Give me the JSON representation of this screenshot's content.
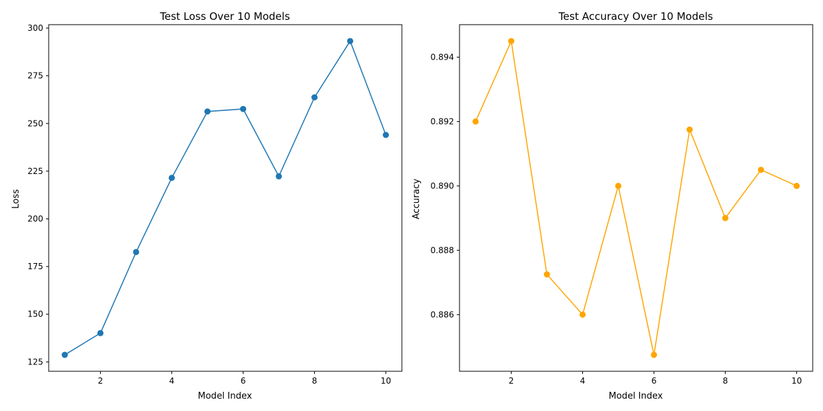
{
  "chart_data": [
    {
      "type": "line",
      "title": "Test Loss Over 10 Models",
      "xlabel": "Model Index",
      "ylabel": "Loss",
      "x": [
        1,
        2,
        3,
        4,
        5,
        6,
        7,
        8,
        9,
        10
      ],
      "series": [
        {
          "color": "#1f77b4",
          "marker": "circle",
          "values": [
            128.7,
            140.1,
            182.6,
            221.5,
            256.3,
            257.6,
            222.3,
            263.7,
            293.2,
            244.0
          ]
        }
      ],
      "xlim": [
        0.55,
        10.45
      ],
      "ylim": [
        120.1,
        301.8
      ],
      "xticks": [
        2,
        4,
        6,
        8,
        10
      ],
      "xtick_labels": [
        "2",
        "4",
        "6",
        "8",
        "10"
      ],
      "yticks": [
        125,
        150,
        175,
        200,
        225,
        250,
        275,
        300
      ],
      "ytick_labels": [
        "125",
        "150",
        "175",
        "200",
        "225",
        "250",
        "275",
        "300"
      ],
      "grid": false
    },
    {
      "type": "line",
      "title": "Test Accuracy Over 10 Models",
      "xlabel": "Model Index",
      "ylabel": "Accuracy",
      "x": [
        1,
        2,
        3,
        4,
        5,
        6,
        7,
        8,
        9,
        10
      ],
      "series": [
        {
          "color": "#ffa500",
          "marker": "circle",
          "values": [
            0.892,
            0.8945,
            0.88725,
            0.886,
            0.89,
            0.88475,
            0.89175,
            0.889,
            0.8905,
            0.89
          ]
        }
      ],
      "xlim": [
        0.55,
        10.45
      ],
      "ylim": [
        0.88424,
        0.89501
      ],
      "xticks": [
        2,
        4,
        6,
        8,
        10
      ],
      "xtick_labels": [
        "2",
        "4",
        "6",
        "8",
        "10"
      ],
      "yticks": [
        0.886,
        0.888,
        0.89,
        0.892,
        0.894
      ],
      "ytick_labels": [
        "0.886",
        "0.888",
        "0.890",
        "0.892",
        "0.894"
      ],
      "grid": false
    }
  ]
}
